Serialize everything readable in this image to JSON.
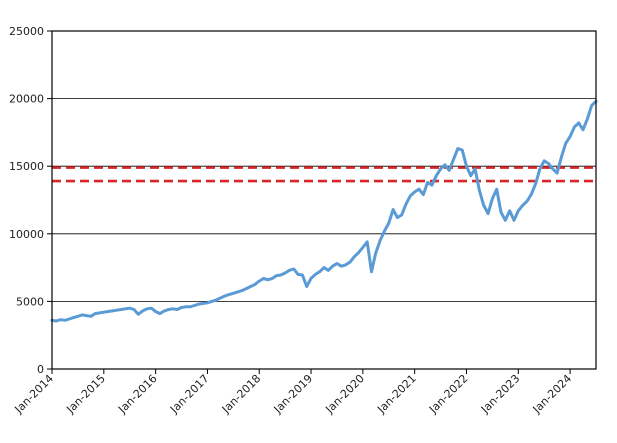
{
  "chart_data": {
    "type": "line",
    "title": "",
    "xlabel": "",
    "ylabel": "",
    "ylim": [
      0,
      25000
    ],
    "xlim": [
      "2014-01",
      "2024-07"
    ],
    "y_ticks": [
      "0",
      "5000",
      "10000",
      "15000",
      "20000",
      "25000"
    ],
    "x_ticks": [
      "Jan-2014",
      "Jan-2015",
      "Jan-2016",
      "Jan-2017",
      "Jan-2018",
      "Jan-2019",
      "Jan-2020",
      "Jan-2021",
      "Jan-2022",
      "Jan-2023",
      "Jan-2024"
    ],
    "grid": "horizontal",
    "legend": "none",
    "series": [
      {
        "color": "#5b9bd5",
        "points": [
          [
            "2014-01",
            3600
          ],
          [
            "2014-02",
            3550
          ],
          [
            "2014-03",
            3650
          ],
          [
            "2014-04",
            3600
          ],
          [
            "2014-05",
            3700
          ],
          [
            "2014-06",
            3800
          ],
          [
            "2014-07",
            3900
          ],
          [
            "2014-08",
            4000
          ],
          [
            "2014-09",
            3950
          ],
          [
            "2014-10",
            3900
          ],
          [
            "2014-11",
            4100
          ],
          [
            "2014-12",
            4150
          ],
          [
            "2015-01",
            4200
          ],
          [
            "2015-02",
            4250
          ],
          [
            "2015-03",
            4300
          ],
          [
            "2015-04",
            4350
          ],
          [
            "2015-05",
            4400
          ],
          [
            "2015-06",
            4450
          ],
          [
            "2015-07",
            4500
          ],
          [
            "2015-08",
            4400
          ],
          [
            "2015-09",
            4050
          ],
          [
            "2015-10",
            4300
          ],
          [
            "2015-11",
            4450
          ],
          [
            "2015-12",
            4500
          ],
          [
            "2016-01",
            4250
          ],
          [
            "2016-02",
            4100
          ],
          [
            "2016-03",
            4300
          ],
          [
            "2016-04",
            4400
          ],
          [
            "2016-05",
            4450
          ],
          [
            "2016-06",
            4400
          ],
          [
            "2016-07",
            4550
          ],
          [
            "2016-08",
            4600
          ],
          [
            "2016-09",
            4600
          ],
          [
            "2016-10",
            4700
          ],
          [
            "2016-11",
            4800
          ],
          [
            "2016-12",
            4850
          ],
          [
            "2017-01",
            4900
          ],
          [
            "2017-02",
            5000
          ],
          [
            "2017-03",
            5100
          ],
          [
            "2017-04",
            5250
          ],
          [
            "2017-05",
            5400
          ],
          [
            "2017-06",
            5500
          ],
          [
            "2017-07",
            5600
          ],
          [
            "2017-08",
            5700
          ],
          [
            "2017-09",
            5800
          ],
          [
            "2017-10",
            5950
          ],
          [
            "2017-11",
            6100
          ],
          [
            "2017-12",
            6250
          ],
          [
            "2018-01",
            6500
          ],
          [
            "2018-02",
            6700
          ],
          [
            "2018-03",
            6600
          ],
          [
            "2018-04",
            6700
          ],
          [
            "2018-05",
            6900
          ],
          [
            "2018-06",
            6950
          ],
          [
            "2018-07",
            7100
          ],
          [
            "2018-08",
            7300
          ],
          [
            "2018-09",
            7400
          ],
          [
            "2018-10",
            7000
          ],
          [
            "2018-11",
            6950
          ],
          [
            "2018-12",
            6100
          ],
          [
            "2019-01",
            6700
          ],
          [
            "2019-02",
            7000
          ],
          [
            "2019-03",
            7200
          ],
          [
            "2019-04",
            7500
          ],
          [
            "2019-05",
            7300
          ],
          [
            "2019-06",
            7600
          ],
          [
            "2019-07",
            7800
          ],
          [
            "2019-08",
            7600
          ],
          [
            "2019-09",
            7700
          ],
          [
            "2019-10",
            7900
          ],
          [
            "2019-11",
            8300
          ],
          [
            "2019-12",
            8600
          ],
          [
            "2020-01",
            9000
          ],
          [
            "2020-02",
            9400
          ],
          [
            "2020-03",
            7200
          ],
          [
            "2020-04",
            8600
          ],
          [
            "2020-05",
            9500
          ],
          [
            "2020-06",
            10200
          ],
          [
            "2020-07",
            10800
          ],
          [
            "2020-08",
            11800
          ],
          [
            "2020-09",
            11200
          ],
          [
            "2020-10",
            11400
          ],
          [
            "2020-11",
            12200
          ],
          [
            "2020-12",
            12800
          ],
          [
            "2021-01",
            13100
          ],
          [
            "2021-02",
            13300
          ],
          [
            "2021-03",
            12900
          ],
          [
            "2021-04",
            13800
          ],
          [
            "2021-05",
            13600
          ],
          [
            "2021-06",
            14300
          ],
          [
            "2021-07",
            14800
          ],
          [
            "2021-08",
            15100
          ],
          [
            "2021-09",
            14700
          ],
          [
            "2021-10",
            15500
          ],
          [
            "2021-11",
            16300
          ],
          [
            "2021-12",
            16200
          ],
          [
            "2022-01",
            15000
          ],
          [
            "2022-02",
            14300
          ],
          [
            "2022-03",
            14800
          ],
          [
            "2022-04",
            13200
          ],
          [
            "2022-05",
            12100
          ],
          [
            "2022-06",
            11500
          ],
          [
            "2022-07",
            12600
          ],
          [
            "2022-08",
            13300
          ],
          [
            "2022-09",
            11600
          ],
          [
            "2022-10",
            11000
          ],
          [
            "2022-11",
            11700
          ],
          [
            "2022-12",
            11000
          ],
          [
            "2023-01",
            11700
          ],
          [
            "2023-02",
            12100
          ],
          [
            "2023-03",
            12400
          ],
          [
            "2023-04",
            12900
          ],
          [
            "2023-05",
            13700
          ],
          [
            "2023-06",
            14800
          ],
          [
            "2023-07",
            15400
          ],
          [
            "2023-08",
            15200
          ],
          [
            "2023-09",
            14800
          ],
          [
            "2023-10",
            14500
          ],
          [
            "2023-11",
            15700
          ],
          [
            "2023-12",
            16700
          ],
          [
            "2024-01",
            17200
          ],
          [
            "2024-02",
            17900
          ],
          [
            "2024-03",
            18200
          ],
          [
            "2024-04",
            17700
          ],
          [
            "2024-05",
            18500
          ],
          [
            "2024-06",
            19500
          ],
          [
            "2024-07",
            19800
          ]
        ]
      }
    ],
    "reference_lines": [
      {
        "y": 14900,
        "color": "#d62728",
        "style": "dashed"
      },
      {
        "y": 13900,
        "color": "#d62728",
        "style": "dashed"
      }
    ]
  }
}
